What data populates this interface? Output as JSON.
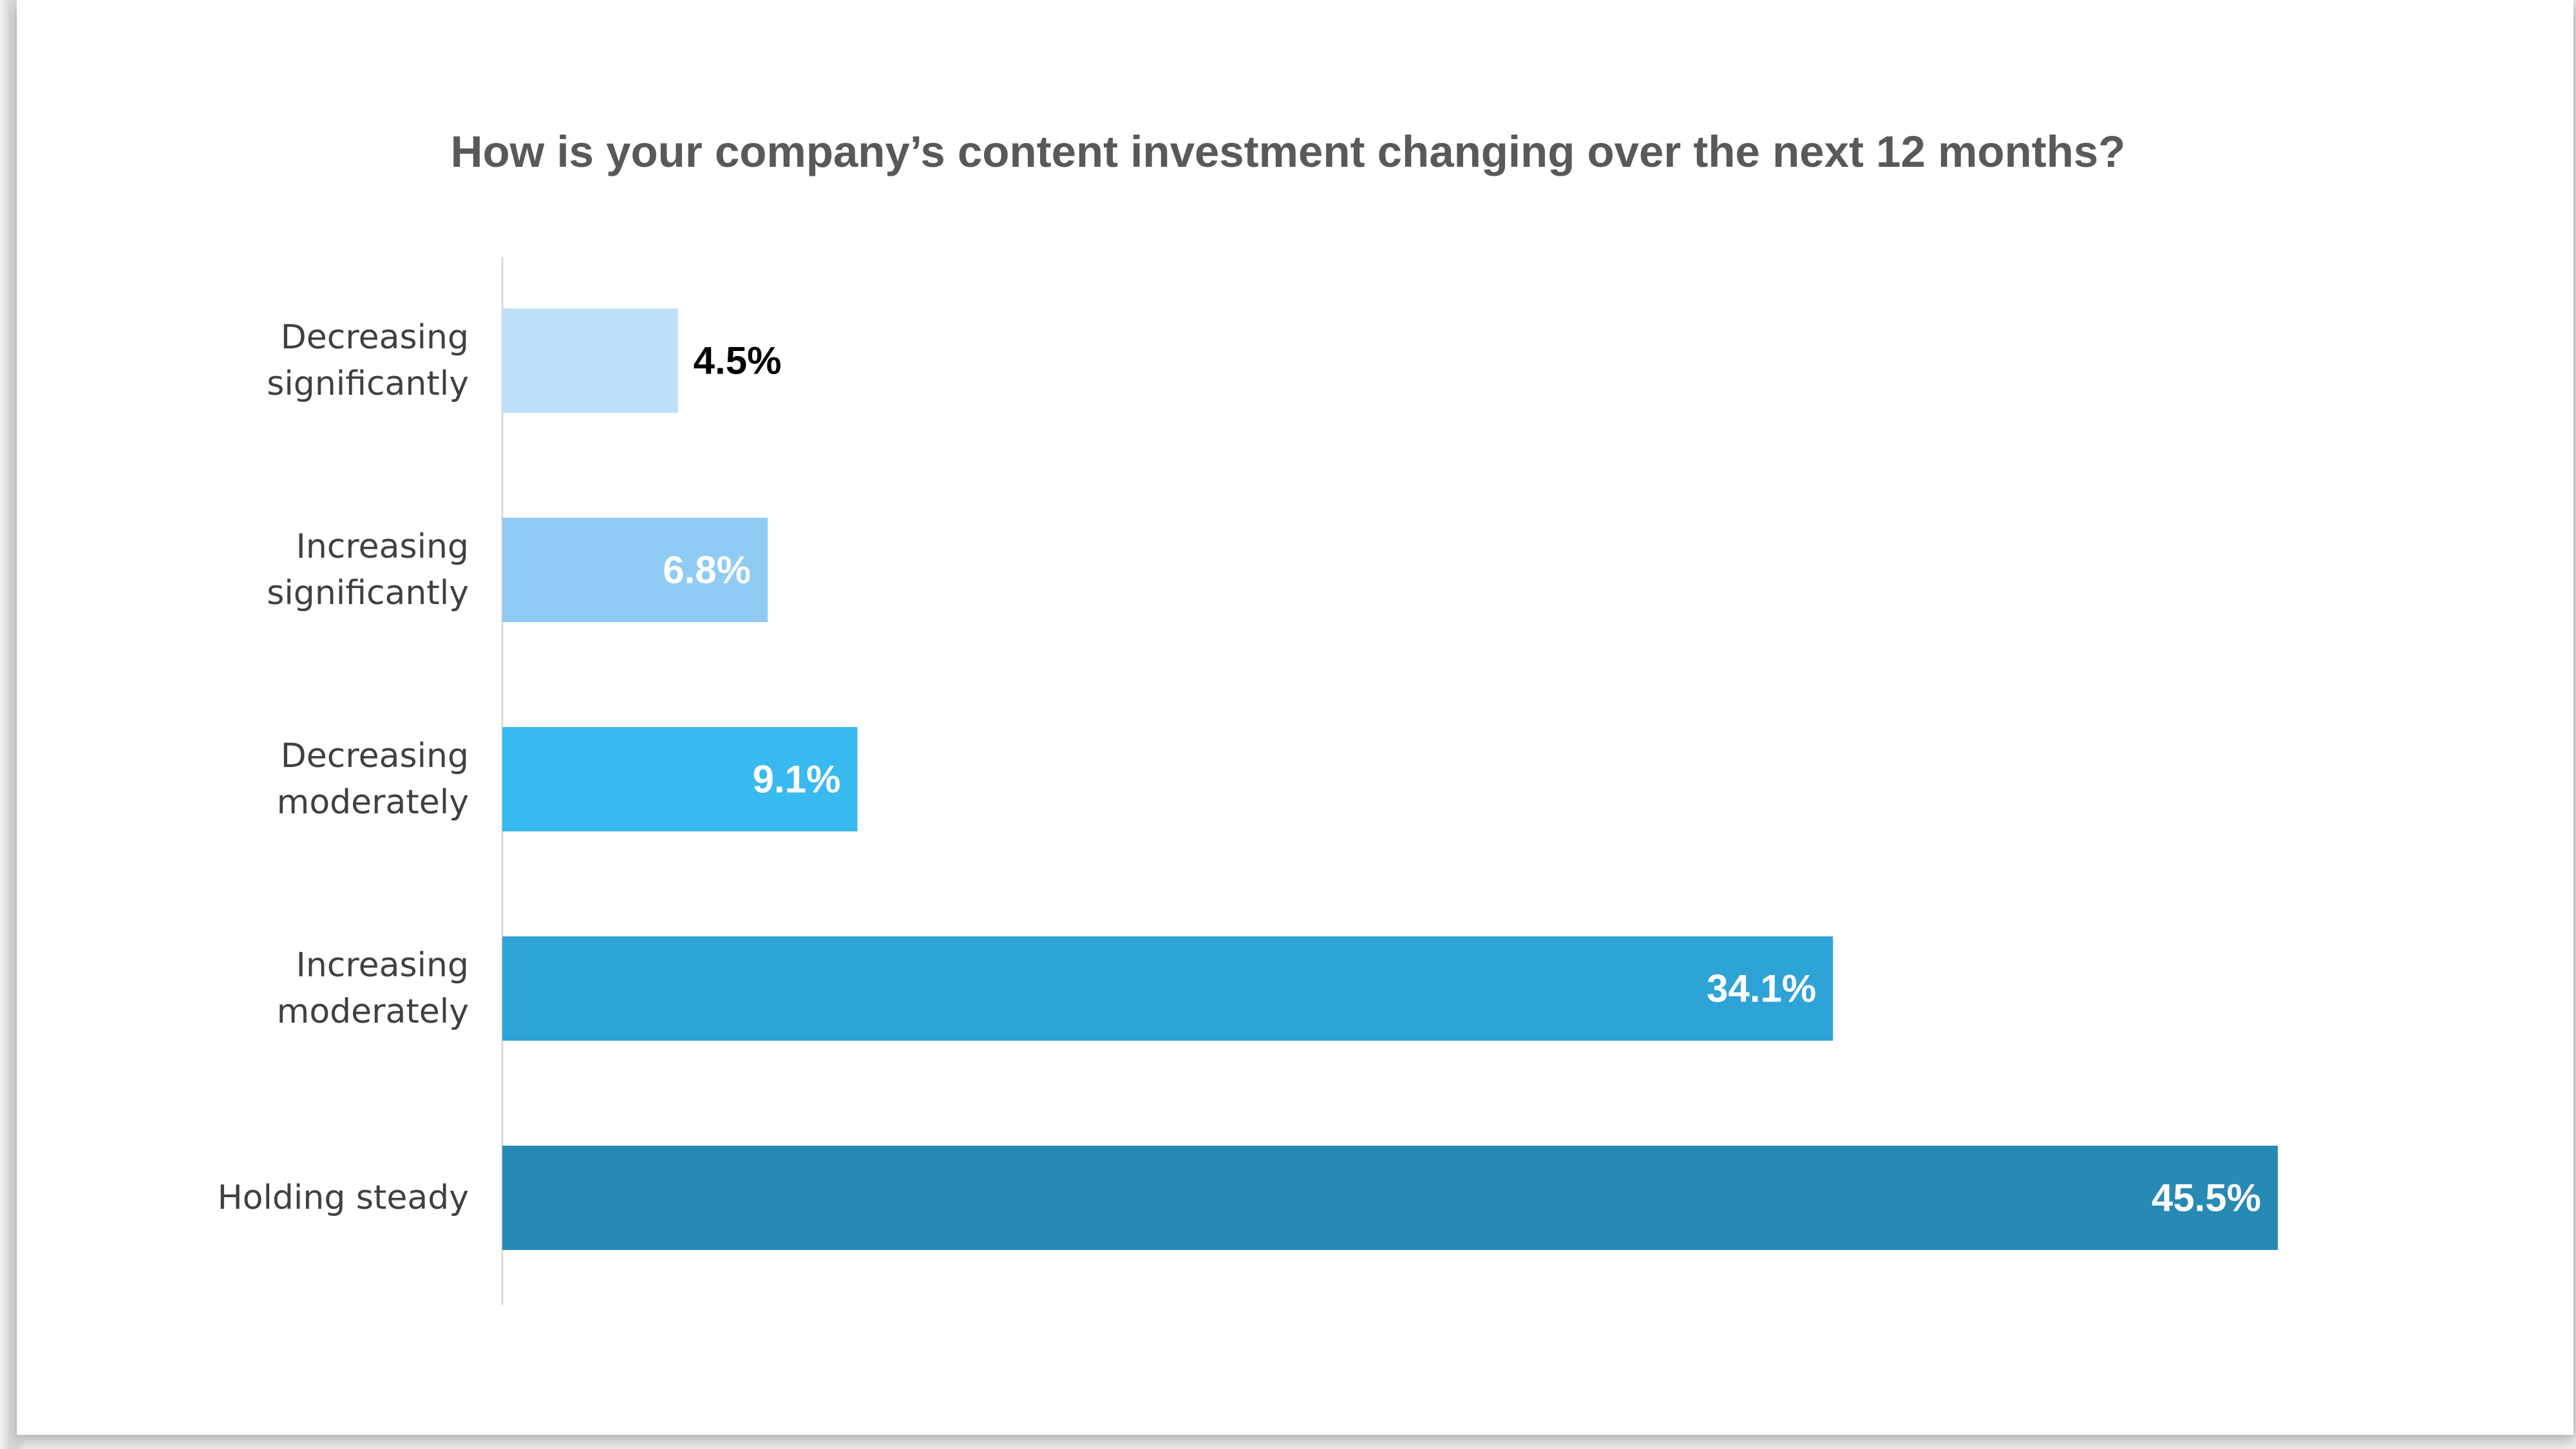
{
  "chart_data": {
    "type": "bar",
    "orientation": "horizontal",
    "title": "How is your company’s content investment changing over the next 12 months?",
    "categories": [
      [
        "Decreasing",
        "significantly"
      ],
      [
        "Increasing",
        "significantly"
      ],
      [
        "Decreasing",
        "moderately"
      ],
      [
        "Increasing",
        "moderately"
      ],
      [
        "Holding steady"
      ]
    ],
    "values": [
      4.5,
      6.8,
      9.1,
      34.1,
      45.5
    ],
    "value_labels": [
      "4.5%",
      "6.8%",
      "9.1%",
      "34.1%",
      "45.5%"
    ],
    "bar_colors": [
      "#BDDFF7",
      "#8FCBF2",
      "#38B9EF",
      "#2EA3D6",
      "#278AB4"
    ],
    "value_label_colors": [
      "#000000",
      "#FFFFFF",
      "#FFFFFF",
      "#FFFFFF",
      "#FFFFFF"
    ],
    "value_label_position": [
      "outside",
      "inside",
      "inside",
      "inside",
      "inside"
    ],
    "xlim": [
      0,
      45.5
    ],
    "grid": false,
    "legend": false
  }
}
